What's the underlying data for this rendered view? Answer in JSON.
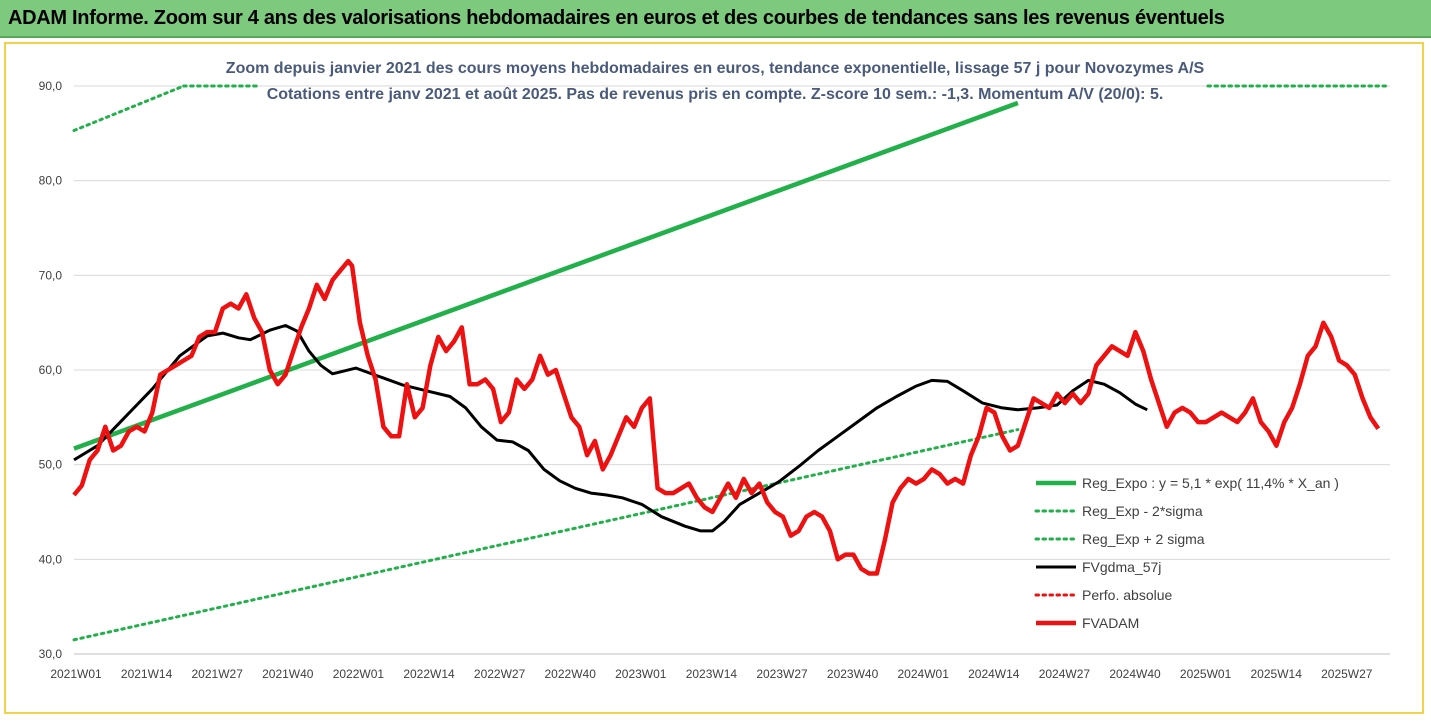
{
  "header": {
    "title": "ADAM Informe. Zoom sur 4 ans des valorisations hebdomadaires en euros et des courbes de tendances sans les revenus éventuels"
  },
  "colors": {
    "banner": "#7dc97d",
    "frame_border": "#f2d24a",
    "regression": "#22b04b",
    "smooth": "#000000",
    "price": "#ee1111",
    "perf": "#ee1111",
    "subtitle": "#4a5a7a"
  },
  "chart_data": {
    "type": "line",
    "title": "Zoom depuis janvier 2021 des cours moyens hebdomadaires en euros, tendance exponentielle, lissage 57 j pour Novozymes A/S",
    "subtitle": "Cotations entre janv 2021 et août 2025.  Pas de revenus pris en compte. Z-score 10 sem.: -1,3. Momentum A/V (20/0): 5.",
    "ylim": [
      30,
      90
    ],
    "y_ticks": [
      "30,0",
      "40,0",
      "50,0",
      "60,0",
      "70,0",
      "80,0",
      "90,0"
    ],
    "x_ticks": [
      "2021W01",
      "2021W14",
      "2021W27",
      "2021W40",
      "2022W01",
      "2022W14",
      "2022W27",
      "2022W40",
      "2023W01",
      "2023W14",
      "2023W27",
      "2023W40",
      "2024W01",
      "2024W14",
      "2024W27",
      "2024W40",
      "2025W01",
      "2025W14",
      "2025W27"
    ],
    "legend_position": "right",
    "grid": "horizontal",
    "series": [
      {
        "name": "Reg_Expo : y = 5,1 * exp( 11,4% *  X_an )",
        "style": "solid-thick",
        "color": "#22b04b",
        "points": [
          [
            0,
            51.7
          ],
          [
            241,
            88.2
          ]
        ]
      },
      {
        "name": "Reg_Exp - 2*sigma",
        "style": "dotted",
        "color": "#22b04b",
        "points": [
          [
            0,
            31.5
          ],
          [
            241,
            53.7
          ]
        ]
      },
      {
        "name": "Reg_Exp + 2 sigma",
        "style": "dotted",
        "color": "#22b04b",
        "points": [
          [
            0,
            85.3
          ],
          [
            28,
            90.0
          ]
        ],
        "clipped_above": true
      },
      {
        "name": "FVgdma_57j",
        "style": "solid",
        "color": "#000000",
        "points": [
          [
            0,
            50.5
          ],
          [
            6,
            52.0
          ],
          [
            13,
            55.0
          ],
          [
            20,
            58.0
          ],
          [
            27,
            61.5
          ],
          [
            34,
            63.6
          ],
          [
            38,
            63.9
          ],
          [
            42,
            63.4
          ],
          [
            45,
            63.2
          ],
          [
            50,
            64.2
          ],
          [
            54,
            64.7
          ],
          [
            57,
            64.1
          ],
          [
            60,
            62.0
          ],
          [
            63,
            60.5
          ],
          [
            66,
            59.6
          ],
          [
            72,
            60.2
          ],
          [
            78,
            59.3
          ],
          [
            84,
            58.4
          ],
          [
            90,
            57.8
          ],
          [
            96,
            57.2
          ],
          [
            100,
            56.0
          ],
          [
            104,
            54.0
          ],
          [
            108,
            52.6
          ],
          [
            112,
            52.4
          ],
          [
            116,
            51.5
          ],
          [
            120,
            49.5
          ],
          [
            124,
            48.3
          ],
          [
            128,
            47.5
          ],
          [
            132,
            47.0
          ],
          [
            136,
            46.8
          ],
          [
            140,
            46.5
          ],
          [
            145,
            45.8
          ],
          [
            150,
            44.5
          ],
          [
            156,
            43.5
          ],
          [
            160,
            43.0
          ],
          [
            163,
            43.0
          ],
          [
            166,
            44.0
          ],
          [
            170,
            45.8
          ],
          [
            175,
            47.0
          ],
          [
            180,
            48.2
          ],
          [
            185,
            49.8
          ],
          [
            190,
            51.5
          ],
          [
            195,
            53.0
          ],
          [
            200,
            54.5
          ],
          [
            205,
            56.0
          ],
          [
            210,
            57.2
          ],
          [
            215,
            58.3
          ],
          [
            219,
            58.9
          ],
          [
            223,
            58.8
          ],
          [
            227,
            57.8
          ],
          [
            232,
            56.5
          ],
          [
            237,
            56.0
          ],
          [
            241,
            55.8
          ],
          [
            246,
            56.0
          ],
          [
            251,
            56.3
          ],
          [
            255,
            57.8
          ],
          [
            259,
            58.9
          ],
          [
            263,
            58.5
          ],
          [
            267,
            57.6
          ],
          [
            271,
            56.4
          ],
          [
            274,
            55.8
          ]
        ]
      },
      {
        "name": "Perfo. absolue",
        "style": "dotted",
        "color": "#ee1111",
        "points": []
      },
      {
        "name": "FVADAM",
        "style": "solid-thick",
        "color": "#ee1111",
        "points": [
          [
            0,
            46.8
          ],
          [
            2,
            47.8
          ],
          [
            4,
            50.5
          ],
          [
            6,
            51.5
          ],
          [
            8,
            54.0
          ],
          [
            10,
            51.5
          ],
          [
            12,
            52.0
          ],
          [
            14,
            53.5
          ],
          [
            16,
            54.0
          ],
          [
            18,
            53.5
          ],
          [
            20,
            55.5
          ],
          [
            22,
            59.5
          ],
          [
            24,
            60.0
          ],
          [
            26,
            60.5
          ],
          [
            28,
            61.0
          ],
          [
            30,
            61.5
          ],
          [
            32,
            63.5
          ],
          [
            34,
            64.0
          ],
          [
            36,
            64.0
          ],
          [
            38,
            66.5
          ],
          [
            40,
            67.0
          ],
          [
            42,
            66.5
          ],
          [
            44,
            68.0
          ],
          [
            46,
            65.5
          ],
          [
            48,
            64.0
          ],
          [
            50,
            60.0
          ],
          [
            52,
            58.5
          ],
          [
            54,
            59.5
          ],
          [
            56,
            62.0
          ],
          [
            58,
            64.5
          ],
          [
            60,
            66.5
          ],
          [
            62,
            69.0
          ],
          [
            64,
            67.5
          ],
          [
            66,
            69.5
          ],
          [
            68,
            70.5
          ],
          [
            70,
            71.5
          ],
          [
            71,
            71.0
          ],
          [
            73,
            65.0
          ],
          [
            75,
            61.5
          ],
          [
            77,
            59.0
          ],
          [
            79,
            54.0
          ],
          [
            81,
            53.0
          ],
          [
            83,
            53.0
          ],
          [
            85,
            58.5
          ],
          [
            87,
            55.0
          ],
          [
            89,
            56.0
          ],
          [
            91,
            60.5
          ],
          [
            93,
            63.5
          ],
          [
            95,
            62.0
          ],
          [
            97,
            63.0
          ],
          [
            99,
            64.5
          ],
          [
            101,
            58.5
          ],
          [
            103,
            58.5
          ],
          [
            105,
            59.0
          ],
          [
            107,
            58.0
          ],
          [
            109,
            54.5
          ],
          [
            111,
            55.5
          ],
          [
            113,
            59.0
          ],
          [
            115,
            58.0
          ],
          [
            117,
            59.0
          ],
          [
            119,
            61.5
          ],
          [
            121,
            59.5
          ],
          [
            123,
            60.0
          ],
          [
            125,
            57.5
          ],
          [
            127,
            55.0
          ],
          [
            129,
            54.0
          ],
          [
            131,
            51.0
          ],
          [
            133,
            52.5
          ],
          [
            135,
            49.5
          ],
          [
            137,
            51.0
          ],
          [
            139,
            53.0
          ],
          [
            141,
            55.0
          ],
          [
            143,
            54.0
          ],
          [
            145,
            56.0
          ],
          [
            147,
            57.0
          ],
          [
            149,
            47.5
          ],
          [
            151,
            47.0
          ],
          [
            153,
            47.0
          ],
          [
            155,
            47.5
          ],
          [
            157,
            48.0
          ],
          [
            159,
            46.5
          ],
          [
            161,
            45.5
          ],
          [
            163,
            45.0
          ],
          [
            165,
            46.5
          ],
          [
            167,
            48.0
          ],
          [
            169,
            46.5
          ],
          [
            171,
            48.5
          ],
          [
            173,
            47.0
          ],
          [
            175,
            48.0
          ],
          [
            177,
            46.0
          ],
          [
            179,
            45.0
          ],
          [
            181,
            44.5
          ],
          [
            183,
            42.5
          ],
          [
            185,
            43.0
          ],
          [
            187,
            44.5
          ],
          [
            189,
            45.0
          ],
          [
            191,
            44.5
          ],
          [
            193,
            43.0
          ],
          [
            195,
            40.0
          ],
          [
            197,
            40.5
          ],
          [
            199,
            40.5
          ],
          [
            201,
            39.0
          ],
          [
            203,
            38.5
          ],
          [
            205,
            38.5
          ],
          [
            207,
            42.0
          ],
          [
            209,
            46.0
          ],
          [
            211,
            47.5
          ],
          [
            213,
            48.5
          ],
          [
            215,
            48.0
          ],
          [
            217,
            48.5
          ],
          [
            219,
            49.5
          ],
          [
            221,
            49.0
          ],
          [
            223,
            48.0
          ],
          [
            225,
            48.5
          ],
          [
            227,
            48.0
          ],
          [
            229,
            51.0
          ],
          [
            231,
            53.0
          ],
          [
            233,
            56.0
          ],
          [
            235,
            55.5
          ],
          [
            237,
            53.0
          ],
          [
            239,
            51.5
          ],
          [
            241,
            52.0
          ],
          [
            243,
            54.5
          ],
          [
            245,
            57.0
          ],
          [
            247,
            56.5
          ],
          [
            249,
            56.0
          ],
          [
            251,
            57.5
          ],
          [
            253,
            56.5
          ],
          [
            255,
            57.5
          ],
          [
            257,
            56.5
          ],
          [
            259,
            57.5
          ],
          [
            261,
            60.5
          ],
          [
            263,
            61.5
          ],
          [
            265,
            62.5
          ],
          [
            267,
            62.0
          ],
          [
            269,
            61.5
          ],
          [
            271,
            64.0
          ],
          [
            273,
            62.0
          ],
          [
            275,
            59.0
          ],
          [
            277,
            56.5
          ],
          [
            279,
            54.0
          ],
          [
            281,
            55.5
          ],
          [
            283,
            56.0
          ],
          [
            285,
            55.5
          ],
          [
            287,
            54.5
          ],
          [
            289,
            54.5
          ],
          [
            291,
            55.0
          ],
          [
            293,
            55.5
          ],
          [
            295,
            55.0
          ],
          [
            297,
            54.5
          ],
          [
            299,
            55.5
          ],
          [
            301,
            57.0
          ],
          [
            303,
            54.5
          ],
          [
            305,
            53.5
          ],
          [
            307,
            52.0
          ],
          [
            309,
            54.5
          ],
          [
            311,
            56.0
          ],
          [
            313,
            58.5
          ],
          [
            315,
            61.5
          ],
          [
            317,
            62.5
          ],
          [
            319,
            65.0
          ],
          [
            321,
            63.5
          ],
          [
            323,
            61.0
          ],
          [
            325,
            60.5
          ],
          [
            327,
            59.5
          ],
          [
            329,
            57.0
          ],
          [
            331,
            55.0
          ],
          [
            333,
            53.8
          ]
        ]
      }
    ]
  }
}
